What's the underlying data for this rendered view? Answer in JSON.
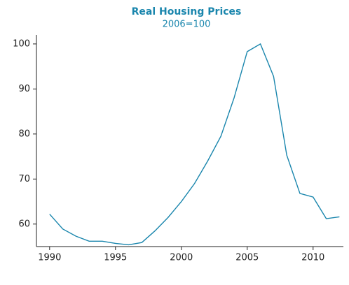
{
  "chart_data": {
    "type": "line",
    "title": "Real Housing Prices",
    "subtitle": "2006=100",
    "x": [
      1990,
      1991,
      1992,
      1993,
      1994,
      1995,
      1996,
      1997,
      1998,
      1999,
      2000,
      2001,
      2002,
      2003,
      2004,
      2005,
      2006,
      2007,
      2008,
      2009,
      2010,
      2011,
      2012
    ],
    "series": [
      {
        "name": "Real Housing Prices",
        "color": "#1a86ad",
        "values": [
          62.2,
          58.9,
          57.3,
          56.2,
          56.2,
          55.7,
          55.4,
          55.9,
          58.5,
          61.5,
          65,
          69,
          74,
          79.5,
          88,
          98.3,
          100,
          92.8,
          75.3,
          66.8,
          66,
          61.2,
          61.6
        ]
      }
    ],
    "xlim": [
      1989,
      2012.3
    ],
    "xticks": [
      1990,
      1995,
      2000,
      2005,
      2010
    ],
    "ylim": [
      55,
      102
    ],
    "yticks": [
      60,
      70,
      80,
      90,
      100
    ]
  }
}
